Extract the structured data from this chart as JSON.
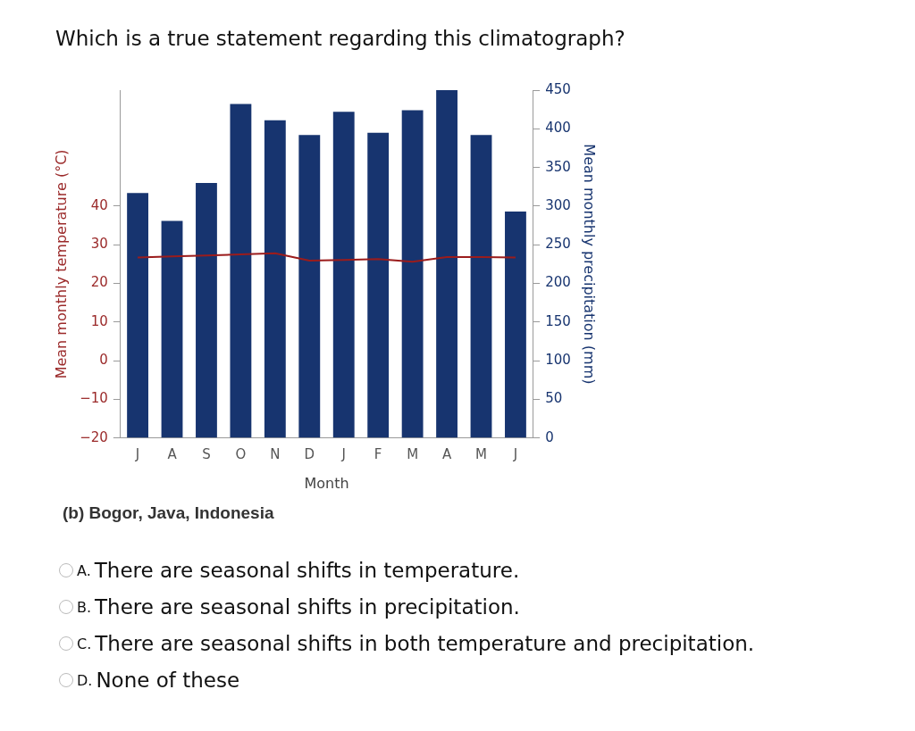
{
  "chart_data": {
    "type": "bar",
    "title": "Which is a true statement regarding this climatograph?",
    "xlabel": "Month",
    "ylabel": "Mean monthly temperature (°C)",
    "y2label": "Mean monthly precipitation (mm)",
    "categories": [
      "J",
      "A",
      "S",
      "O",
      "N",
      "D",
      "J",
      "F",
      "M",
      "A",
      "M",
      "J"
    ],
    "series": [
      {
        "axis": "y2",
        "color": "#17346f",
        "values": [
          317,
          281,
          330,
          432,
          411,
          392,
          422,
          395,
          424,
          450,
          392,
          293
        ]
      },
      {
        "type": "line",
        "axis": "y",
        "color": "#9b1c1c",
        "values": [
          26.7,
          27,
          27.2,
          27.5,
          27.8,
          25.9,
          26.1,
          26.3,
          25.6,
          26.8,
          26.8,
          26.7
        ]
      }
    ],
    "ylim": [
      -20,
      70
    ],
    "yticks": [
      {
        "value": -20,
        "label": "−20"
      },
      {
        "value": -10,
        "label": "−10"
      },
      0,
      10,
      20,
      30,
      40
    ],
    "y2lim": [
      0,
      450
    ],
    "y2ticks": [
      0,
      50,
      100,
      150,
      200,
      250,
      300,
      350,
      400,
      450
    ],
    "grid": false,
    "legend": false,
    "marker": "none",
    "line_style": "solid",
    "annotations": [
      "(b) Bogor, Java, Indonesia",
      "A. There are seasonal shifts in temperature.",
      "B. There are seasonal shifts in precipitation.",
      "C. There are seasonal shifts in both temperature and precipitation.",
      "D. None of these"
    ]
  }
}
